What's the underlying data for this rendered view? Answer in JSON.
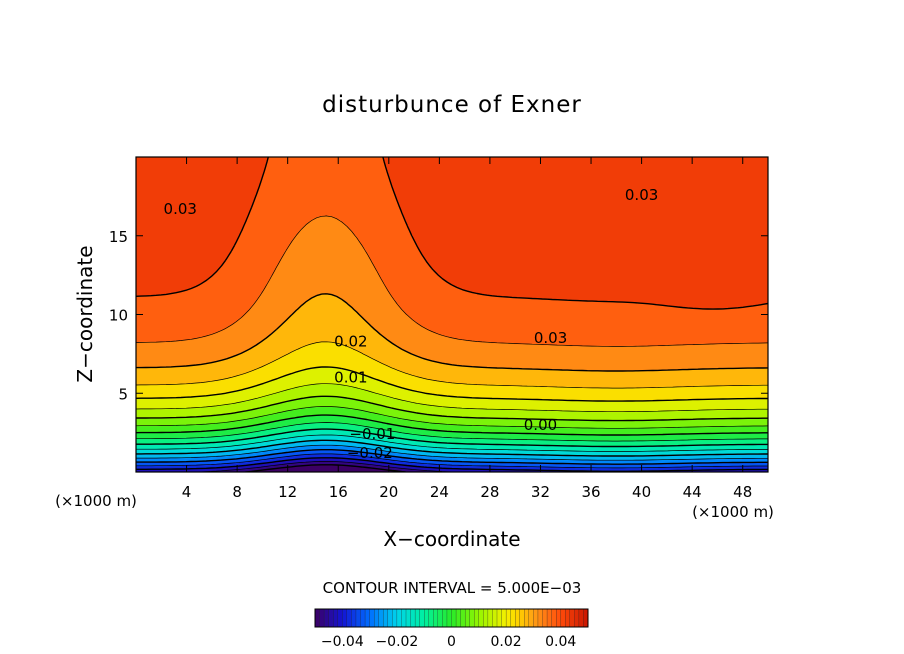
{
  "chart_data": {
    "type": "heatmap",
    "title": "disturbunce of Exner",
    "xlabel": "X−coordinate",
    "ylabel": "Z−coordinate",
    "x_unit_left": "(×1000 m)",
    "x_unit_right": "(×1000 m)",
    "xlim": [
      0,
      50
    ],
    "ylim": [
      0,
      20
    ],
    "x_ticks": [
      4,
      8,
      12,
      16,
      20,
      24,
      28,
      32,
      36,
      40,
      44,
      48
    ],
    "y_ticks": [
      5,
      10,
      15
    ],
    "contour_interval_text": "CONTOUR INTERVAL = 5.000E−03",
    "contour_interval": 0.005,
    "contour_labels": [
      {
        "text": "0.03",
        "x": 3.5,
        "z": 16.7
      },
      {
        "text": "0.03",
        "x": 40.0,
        "z": 17.6
      },
      {
        "text": "0.03",
        "x": 32.8,
        "z": 8.5
      },
      {
        "text": "0.02",
        "x": 17.0,
        "z": 8.3
      },
      {
        "text": "0.01",
        "x": 17.0,
        "z": 6.0
      },
      {
        "text": "0.00",
        "x": 32.0,
        "z": 3.0
      },
      {
        "text": "−0.01",
        "x": 18.7,
        "z": 2.4
      },
      {
        "text": "−0.02",
        "x": 18.5,
        "z": 1.2
      }
    ],
    "colorbar": {
      "range": [
        -0.05,
        0.05
      ],
      "tick_values": [
        -0.04,
        -0.02,
        0,
        0.02,
        0.04
      ],
      "tick_labels": [
        "−0.04",
        "−0.02",
        "0",
        "0.02",
        "0.04"
      ]
    }
  }
}
